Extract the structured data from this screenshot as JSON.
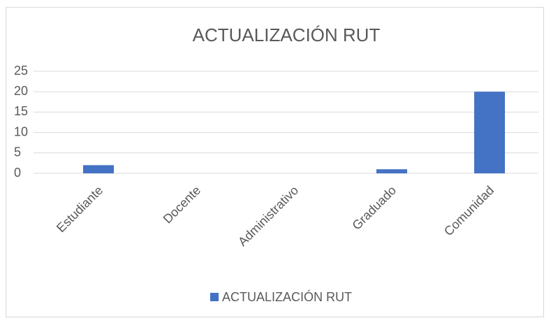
{
  "chart_data": {
    "type": "bar",
    "title": "ACTUALIZACIÓN RUT",
    "categories": [
      "Estudiante",
      "Docente",
      "Administrativo",
      "Graduado",
      "Comunidad"
    ],
    "series": [
      {
        "name": "ACTUALIZACIÓN RUT",
        "color": "#4472c4",
        "values": [
          2,
          0,
          0,
          1,
          20
        ]
      }
    ],
    "ylim": [
      0,
      25
    ],
    "yticks": [
      0,
      5,
      10,
      15,
      20,
      25
    ],
    "grid": true,
    "legend": "bottom"
  }
}
